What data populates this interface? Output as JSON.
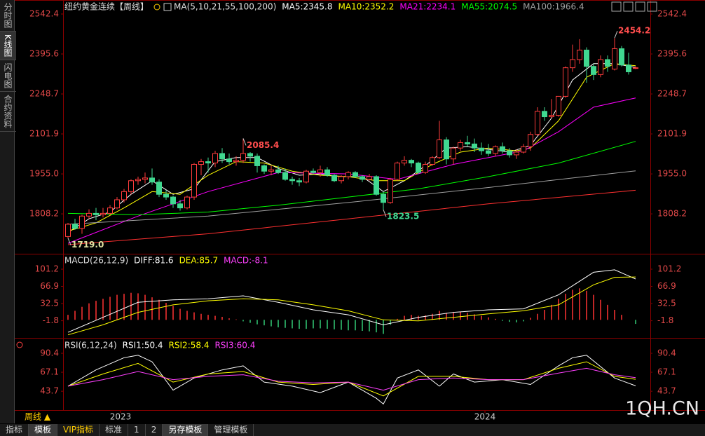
{
  "ui": {
    "sidebar": [
      "分时图",
      "K线图",
      "闪电图",
      "合约资料"
    ],
    "period": "周线 ▲",
    "watermark": "1QH.CN",
    "tabs": [
      "指标",
      "模板",
      "VIP指标",
      "标准",
      "1",
      "2",
      "另存模板",
      "管理模板"
    ]
  },
  "chart_data": [
    {
      "type": "candlestick",
      "title": "纽约黄金连续【周线】",
      "subtitle": "MA(5,10,21,55,100,200)",
      "xlim": [
        -0.7,
        83.1
      ],
      "ylim": [
        1666.8,
        2581.0
      ],
      "yticks": [
        2542.4,
        2395.6,
        2248.7,
        2101.9,
        {
          "value": 1955.0,
          "label": "1955.0"
        },
        1808.2
      ],
      "up_color": "#ff3c3c",
      "down_color": "#40d890",
      "open": [
        1725,
        1770,
        1755,
        1800,
        1810,
        1805,
        1810,
        1830,
        1860,
        1890,
        1930,
        1935,
        1940,
        1925,
        1880,
        1870,
        1845,
        1830,
        1870,
        1990,
        2000,
        1995,
        2030,
        2010,
        2000,
        2005,
        2030,
        2020,
        1985,
        1965,
        1970,
        1960,
        1935,
        1930,
        1925,
        1965,
        1960,
        1970,
        1950,
        1930,
        1945,
        1960,
        1945,
        1935,
        1945,
        1880,
        1850,
        1935,
        1995,
        2005,
        1995,
        1960,
        1990,
        2015,
        2080,
        2010,
        2050,
        2070,
        2065,
        2050,
        2040,
        2030,
        2055,
        2040,
        2025,
        2035,
        2055,
        2100,
        2185,
        2165,
        2170,
        2240,
        2345,
        2375,
        2410,
        2350,
        2320,
        2375,
        2340,
        2415,
        2355,
        2345
      ],
      "high": [
        1775,
        1790,
        1805,
        1825,
        1830,
        1830,
        1840,
        1870,
        1900,
        1935,
        1945,
        1960,
        1975,
        1935,
        1895,
        1875,
        1860,
        1875,
        1995,
        2010,
        2015,
        2040,
        2050,
        2030,
        2020,
        2085.4,
        2035,
        2030,
        1990,
        1985,
        1985,
        1975,
        1945,
        1940,
        1970,
        1975,
        1985,
        1980,
        1955,
        1950,
        1965,
        1965,
        1950,
        1955,
        1950,
        1890,
        1940,
        2000,
        2020,
        2010,
        2000,
        2000,
        2020,
        2150,
        2090,
        2055,
        2080,
        2095,
        2085,
        2070,
        2065,
        2060,
        2070,
        2050,
        2045,
        2065,
        2110,
        2200,
        2200,
        2230,
        2240,
        2350,
        2430,
        2450,
        2420,
        2360,
        2390,
        2390,
        2454.2,
        2425,
        2400,
        2350
      ],
      "low": [
        1719,
        1750,
        1735,
        1790,
        1785,
        1795,
        1805,
        1825,
        1850,
        1880,
        1915,
        1920,
        1915,
        1870,
        1860,
        1830,
        1820,
        1825,
        1860,
        1950,
        1960,
        1980,
        1995,
        1990,
        1985,
        1995,
        2000,
        1960,
        1955,
        1950,
        1955,
        1930,
        1915,
        1910,
        1920,
        1955,
        1945,
        1945,
        1925,
        1920,
        1935,
        1940,
        1925,
        1930,
        1875,
        1823.5,
        1845,
        1930,
        1985,
        1980,
        1955,
        1955,
        1985,
        2010,
        1990,
        1990,
        2040,
        2055,
        2035,
        2025,
        2020,
        2020,
        2030,
        2015,
        2010,
        2030,
        2040,
        2095,
        2150,
        2160,
        2165,
        2235,
        2330,
        2360,
        2290,
        2300,
        2310,
        2330,
        2335,
        2350,
        2320,
        2340
      ],
      "close": [
        1770,
        1755,
        1800,
        1810,
        1805,
        1810,
        1830,
        1860,
        1890,
        1930,
        1935,
        1940,
        1925,
        1880,
        1870,
        1845,
        1830,
        1870,
        1990,
        2000,
        1995,
        2030,
        2010,
        2000,
        2005,
        2030,
        2020,
        1985,
        1965,
        1970,
        1960,
        1935,
        1930,
        1925,
        1965,
        1960,
        1970,
        1950,
        1930,
        1945,
        1960,
        1945,
        1935,
        1945,
        1880,
        1850,
        1935,
        1995,
        2005,
        1995,
        1960,
        1990,
        2015,
        2080,
        2010,
        2050,
        2070,
        2065,
        2050,
        2040,
        2030,
        2055,
        2040,
        2025,
        2035,
        2055,
        2100,
        2185,
        2165,
        2170,
        2240,
        2345,
        2375,
        2410,
        2350,
        2320,
        2375,
        2350,
        2415,
        2355,
        2330,
        2345
      ],
      "series": [
        {
          "label": "MA5:2345.8",
          "color": "#ffffff",
          "x": [
            0,
            3,
            6,
            9,
            12,
            15,
            18,
            21,
            24,
            27,
            30,
            33,
            36,
            39,
            42,
            45,
            48,
            51,
            54,
            57,
            60,
            63,
            66,
            69,
            72,
            75,
            78,
            81
          ],
          "values": [
            1740,
            1790,
            1815,
            1880,
            1930,
            1880,
            1900,
            2000,
            2015,
            2015,
            1975,
            1950,
            1955,
            1945,
            1945,
            1890,
            1930,
            1985,
            2050,
            2055,
            2045,
            2035,
            2060,
            2160,
            2300,
            2360,
            2360,
            2345.8
          ]
        },
        {
          "label": "MA10:2352.2",
          "color": "#ffff00",
          "x": [
            0,
            4,
            8,
            12,
            16,
            20,
            24,
            28,
            32,
            36,
            40,
            44,
            48,
            52,
            56,
            60,
            64,
            66,
            70,
            74,
            78,
            81
          ],
          "values": [
            1745,
            1775,
            1830,
            1890,
            1880,
            1950,
            2000,
            1995,
            1965,
            1950,
            1945,
            1930,
            1930,
            1990,
            2035,
            2050,
            2040,
            2050,
            2150,
            2310,
            2360,
            2352.2
          ]
        },
        {
          "label": "MA21:2234.1",
          "color": "#ff00ff",
          "x": [
            0,
            10,
            20,
            30,
            40,
            47,
            55,
            65,
            70,
            75,
            81
          ],
          "values": [
            1700,
            1800,
            1890,
            1960,
            1955,
            1935,
            1990,
            2040,
            2110,
            2200,
            2234.1
          ]
        },
        {
          "label": "MA55:2074.5",
          "color": "#00ff00",
          "x": [
            0,
            10,
            20,
            30,
            40,
            50,
            60,
            70,
            81
          ],
          "values": [
            1810,
            1805,
            1815,
            1840,
            1870,
            1900,
            1945,
            1995,
            2074.5
          ]
        },
        {
          "label": "MA100:1966.4",
          "color": "#a0a0a0",
          "x": [
            0,
            20,
            40,
            60,
            81
          ],
          "values": [
            1770,
            1800,
            1850,
            1905,
            1966.4
          ]
        },
        {
          "color": "#ff3030",
          "x": [
            0,
            20,
            40,
            60,
            81
          ],
          "values": [
            1695,
            1735,
            1790,
            1845,
            1895
          ]
        }
      ],
      "annotations": [
        {
          "x": 78,
          "y": 2454.2,
          "label": "2454.2",
          "color": "#ff4d4d"
        },
        {
          "x": 25,
          "y": 2085.4,
          "label": "2085.4",
          "color": "#ff4d4d"
        },
        {
          "x": 45,
          "y": 1823.5,
          "label": "1823.5",
          "color": "#40d890"
        },
        {
          "x": 0,
          "y": 1719,
          "label": "1719.0",
          "color": "#e0e0a0"
        }
      ]
    },
    {
      "type": "macd",
      "title": "MACD(26,12,9)",
      "xlim": [
        -0.7,
        83.1
      ],
      "ylim": [
        -33.2,
        120.8
      ],
      "yticks": [
        101.2,
        66.9,
        32.5,
        -1.8
      ],
      "histogram": {
        "label": "MACD:-8.1",
        "label_color": "#ff40ff",
        "up_color": "#ff3333",
        "down_color": "#33cc77",
        "values": [
          10,
          18,
          26,
          33,
          38,
          42,
          46,
          50,
          52,
          54,
          53,
          50,
          45,
          40,
          34,
          28,
          22,
          18,
          15,
          12,
          10,
          8,
          6,
          3,
          1,
          -3,
          -6,
          -9,
          -11,
          -13,
          -15,
          -16,
          -17,
          -18,
          -18,
          -17,
          -17,
          -18,
          -19,
          -20,
          -21,
          -21,
          -22,
          -23,
          -25,
          -28,
          -10,
          2,
          8,
          10,
          8,
          9,
          12,
          18,
          14,
          15,
          16,
          14,
          11,
          8,
          5,
          2,
          -2,
          -4,
          -5,
          -3,
          4,
          12,
          20,
          30,
          42,
          52,
          60,
          63,
          58,
          50,
          40,
          30,
          20,
          10,
          0,
          -8.1
        ]
      },
      "series": [
        {
          "label": "DIFF:81.6",
          "color": "#ffffff",
          "x": [
            0,
            5,
            10,
            15,
            20,
            25,
            30,
            35,
            40,
            45,
            50,
            55,
            60,
            65,
            70,
            75,
            78,
            81
          ],
          "values": [
            -25,
            5,
            35,
            40,
            42,
            48,
            35,
            20,
            10,
            -10,
            5,
            15,
            20,
            22,
            50,
            95,
            100,
            81.6
          ]
        },
        {
          "label": "DEA:85.7",
          "color": "#ffff00",
          "x": [
            0,
            5,
            10,
            15,
            20,
            25,
            30,
            35,
            40,
            45,
            50,
            55,
            60,
            65,
            70,
            75,
            78,
            81
          ],
          "values": [
            -30,
            -10,
            15,
            30,
            38,
            42,
            40,
            30,
            18,
            0,
            -2,
            5,
            12,
            18,
            30,
            70,
            85,
            85.7
          ]
        }
      ]
    },
    {
      "type": "line",
      "title": "RSI(6,12,24)",
      "xlim": [
        -0.7,
        83.1
      ],
      "ylim": [
        21.4,
        102.5
      ],
      "yticks": [
        90.4,
        67.1,
        43.7
      ],
      "xticks": [
        {
          "value": 7.5,
          "label": "2023"
        },
        {
          "value": 59.5,
          "label": "2024"
        }
      ],
      "series": [
        {
          "label": "RSI1:50.4",
          "color": "#ffffff",
          "x": [
            0,
            4,
            8,
            10,
            12,
            15,
            18,
            22,
            25,
            28,
            32,
            36,
            40,
            44,
            45,
            47,
            50,
            53,
            55,
            58,
            62,
            66,
            70,
            72,
            74,
            78,
            81
          ],
          "values": [
            50,
            70,
            85,
            88,
            80,
            45,
            60,
            70,
            75,
            55,
            50,
            42,
            55,
            35,
            28,
            60,
            70,
            50,
            65,
            55,
            58,
            52,
            75,
            85,
            88,
            60,
            50.4
          ]
        },
        {
          "label": "RSI2:58.4",
          "color": "#ffff00",
          "x": [
            0,
            5,
            10,
            15,
            20,
            25,
            30,
            35,
            40,
            45,
            50,
            55,
            60,
            65,
            70,
            74,
            78,
            81
          ],
          "values": [
            50,
            65,
            78,
            55,
            65,
            68,
            55,
            52,
            55,
            38,
            62,
            62,
            58,
            58,
            72,
            80,
            62,
            58.4
          ]
        },
        {
          "label": "RSI3:60.4",
          "color": "#ff40ff",
          "x": [
            0,
            5,
            10,
            15,
            20,
            25,
            30,
            35,
            40,
            45,
            50,
            55,
            60,
            65,
            70,
            74,
            78,
            81
          ],
          "values": [
            50,
            58,
            68,
            58,
            62,
            64,
            56,
            54,
            55,
            45,
            58,
            60,
            58,
            58,
            66,
            72,
            64,
            60.4
          ]
        }
      ]
    }
  ]
}
